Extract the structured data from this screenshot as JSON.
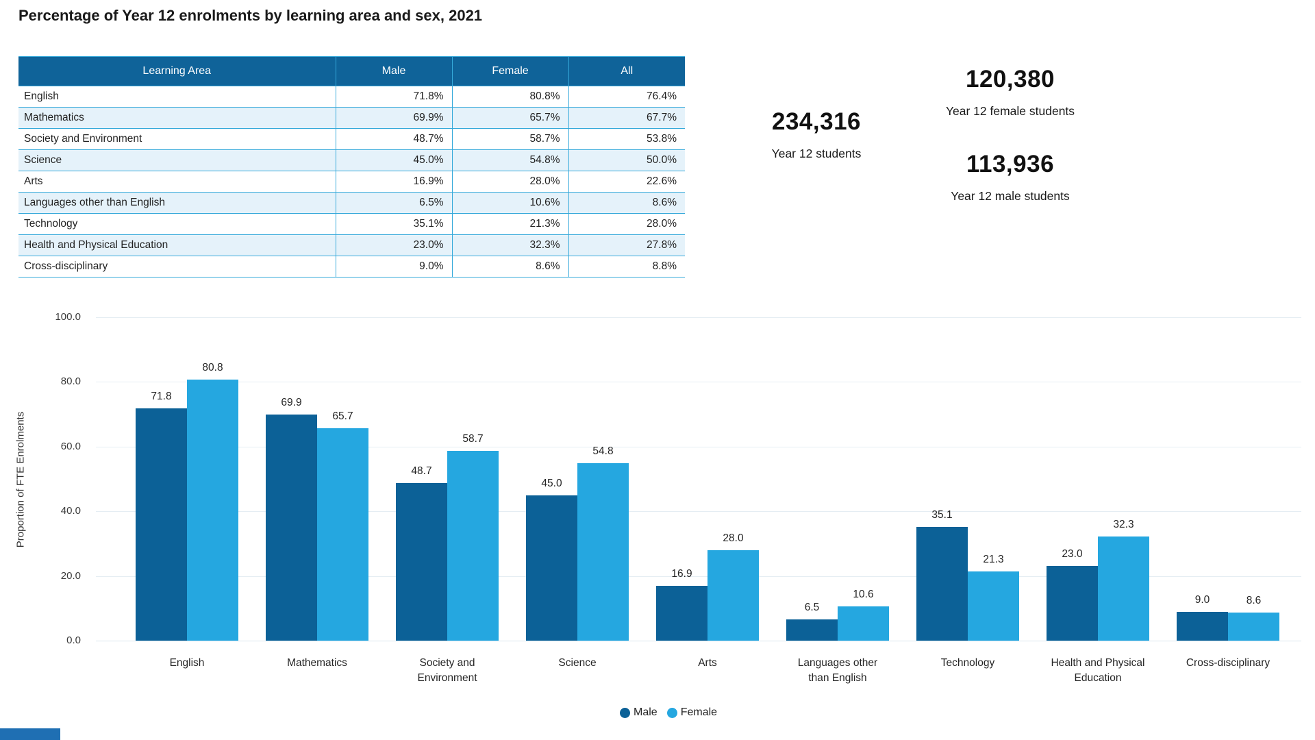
{
  "page": {
    "title": "Percentage of Year 12 enrolments by learning area and sex, 2021"
  },
  "table": {
    "headers": [
      "Learning Area",
      "Male",
      "Female",
      "All"
    ],
    "rows": [
      [
        "English",
        "71.8%",
        "80.8%",
        "76.4%"
      ],
      [
        "Mathematics",
        "69.9%",
        "65.7%",
        "67.7%"
      ],
      [
        "Society and Environment",
        "48.7%",
        "58.7%",
        "53.8%"
      ],
      [
        "Science",
        "45.0%",
        "54.8%",
        "50.0%"
      ],
      [
        "Arts",
        "16.9%",
        "28.0%",
        "22.6%"
      ],
      [
        "Languages other than English",
        "6.5%",
        "10.6%",
        "8.6%"
      ],
      [
        "Technology",
        "35.1%",
        "21.3%",
        "28.0%"
      ],
      [
        "Health and Physical Education",
        "23.0%",
        "32.3%",
        "27.8%"
      ],
      [
        "Cross-disciplinary",
        "9.0%",
        "8.6%",
        "8.8%"
      ]
    ]
  },
  "stats": {
    "total": {
      "value": "234,316",
      "label": "Year 12 students"
    },
    "female": {
      "value": "120,380",
      "label": "Year 12 female students"
    },
    "male": {
      "value": "113,936",
      "label": "Year 12 male students"
    }
  },
  "chart_data": {
    "type": "bar",
    "title": "",
    "categories": [
      "English",
      "Mathematics",
      "Society and Environment",
      "Science",
      "Arts",
      "Languages other than English",
      "Technology",
      "Health and Physical Education",
      "Cross-disciplinary"
    ],
    "category_label_lines": [
      [
        "English"
      ],
      [
        "Mathematics"
      ],
      [
        "Society and",
        "Environment"
      ],
      [
        "Science"
      ],
      [
        "Arts"
      ],
      [
        "Languages other",
        "than English"
      ],
      [
        "Technology"
      ],
      [
        "Health and Physical",
        "Education"
      ],
      [
        "Cross-disciplinary"
      ]
    ],
    "series": [
      {
        "name": "Male",
        "color": "#0c6197",
        "values": [
          71.8,
          69.9,
          48.7,
          45.0,
          16.9,
          6.5,
          35.1,
          23.0,
          9.0
        ]
      },
      {
        "name": "Female",
        "color": "#25a7e0",
        "values": [
          80.8,
          65.7,
          58.7,
          54.8,
          28.0,
          10.6,
          21.3,
          32.3,
          8.6
        ]
      }
    ],
    "xlabel": "",
    "ylabel": "Proportion of FTE Enrolments",
    "ylim": [
      0,
      100
    ],
    "yticks": [
      0,
      20,
      40,
      60,
      80,
      100
    ],
    "ytick_labels": [
      "0.0",
      "20.0",
      "40.0",
      "60.0",
      "80.0",
      "100.0"
    ],
    "grid": true,
    "value_labels": true,
    "legend_position": "bottom"
  },
  "colors": {
    "table_header_bg": "#0f6399",
    "table_row_alt": "#e5f2fa",
    "table_border": "#35a9da",
    "male": "#0c6197",
    "female": "#25a7e0",
    "gridline": "#e5edf3",
    "accent_strip": "#1f6fb3"
  }
}
